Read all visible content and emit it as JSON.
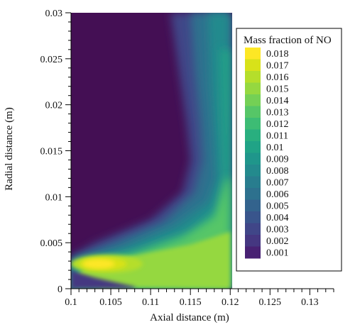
{
  "chart_data": {
    "type": "heatmap",
    "subtype": "filled-contour",
    "title": "",
    "xlabel": "Axial distance (m)",
    "ylabel": "Radial distance (m)",
    "xlim": [
      0.1,
      0.133
    ],
    "ylim": [
      0,
      0.03
    ],
    "x_ticks": [
      "0.1",
      "0.105",
      "0.11",
      "0.115",
      "0.12",
      "0.125",
      "0.13"
    ],
    "y_ticks": [
      "0",
      "0.005",
      "0.01",
      "0.015",
      "0.02",
      "0.025",
      "0.03"
    ],
    "data_extent": {
      "x": [
        0.1,
        0.12
      ],
      "y": [
        0,
        0.03
      ]
    },
    "legend": {
      "title": "Mass fraction of NO",
      "position": "right",
      "levels": [
        "0.018",
        "0.017",
        "0.016",
        "0.015",
        "0.014",
        "0.013",
        "0.012",
        "0.011",
        "0.01",
        "0.009",
        "0.008",
        "0.007",
        "0.006",
        "0.005",
        "0.004",
        "0.003",
        "0.002",
        "0.001"
      ],
      "colors": [
        "#fde725",
        "#d8e219",
        "#b5de2b",
        "#95d840",
        "#74d055",
        "#56c667",
        "#3dbc74",
        "#29af7f",
        "#20a386",
        "#1f968b",
        "#238a8d",
        "#287d8e",
        "#2d718e",
        "#33638d",
        "#39558c",
        "#404688",
        "#453781",
        "#482173"
      ]
    },
    "field_description": {
      "colormap": "viridis",
      "min_value": 0.001,
      "max_value": 0.018
    }
  }
}
